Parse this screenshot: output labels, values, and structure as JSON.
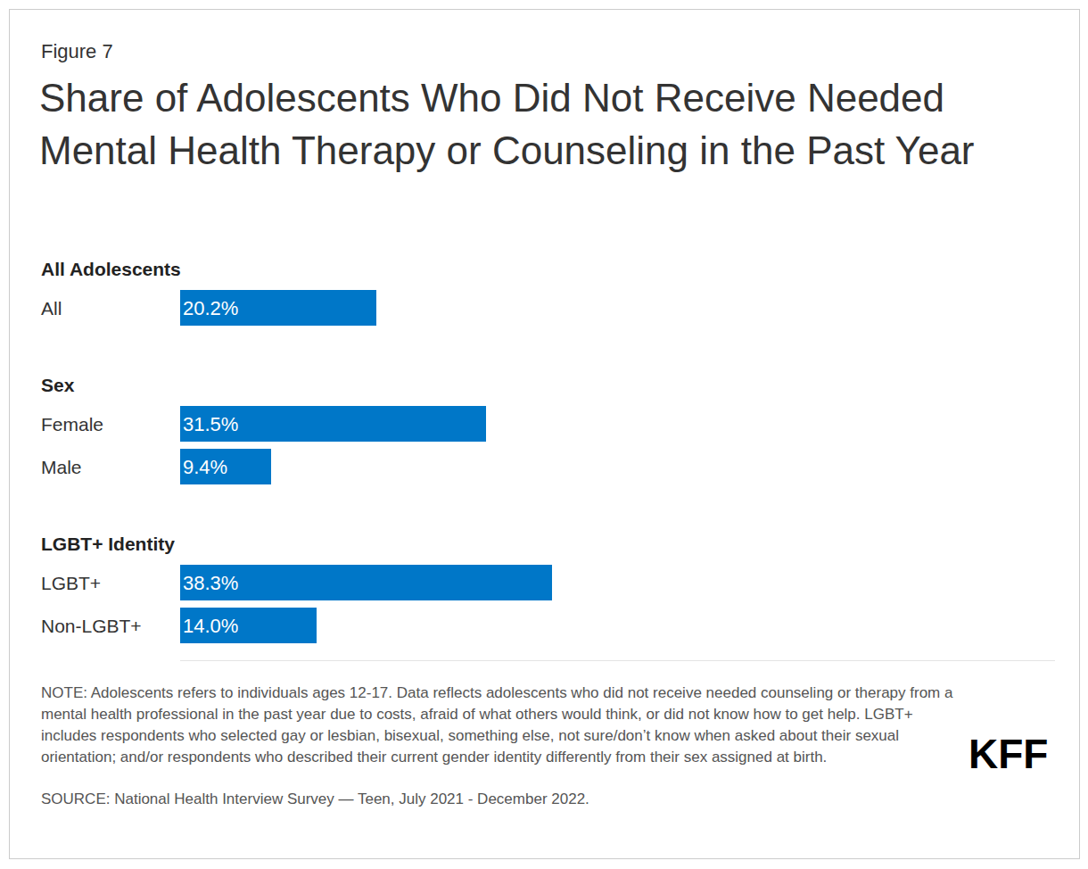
{
  "chart_data": {
    "type": "bar",
    "orientation": "horizontal",
    "title": "Share of Adolescents Who Did Not Receive Needed Mental Health Therapy or Counseling in the Past Year",
    "annotations": {
      "figure": "Figure 7",
      "note": "NOTE: Adolescents refers to individuals ages 12-17. Data reflects adolescents who did not receive needed counseling or therapy from a mental health professional in the past year due to costs, afraid of what others would think, or did not know how to get help. LGBT+ includes respondents who selected gay or lesbian, bisexual, something else, not sure/don’t know when asked about their sexual orientation; and/or respondents who described their current gender identity differently from their sex assigned at birth.",
      "source": "SOURCE: National Health Interview Survey — Teen, July 2021 - December 2022.",
      "logo": "KFF"
    },
    "groups": [
      {
        "label": "All Adolescents",
        "categories": [
          "All"
        ],
        "values": [
          20.2
        ],
        "value_labels": [
          "20.2%"
        ]
      },
      {
        "label": "Sex",
        "categories": [
          "Female",
          "Male"
        ],
        "values": [
          31.5,
          9.4
        ],
        "value_labels": [
          "31.5%",
          "9.4%"
        ]
      },
      {
        "label": "LGBT+ Identity",
        "categories": [
          "LGBT+",
          "Non-LGBT+"
        ],
        "values": [
          38.3,
          14.0
        ],
        "value_labels": [
          "38.3%",
          "14.0%"
        ]
      }
    ],
    "color": "#0077c8",
    "data_labels": true,
    "tick_labels": "y",
    "grid": false,
    "xlim": [
      0,
      90
    ]
  }
}
